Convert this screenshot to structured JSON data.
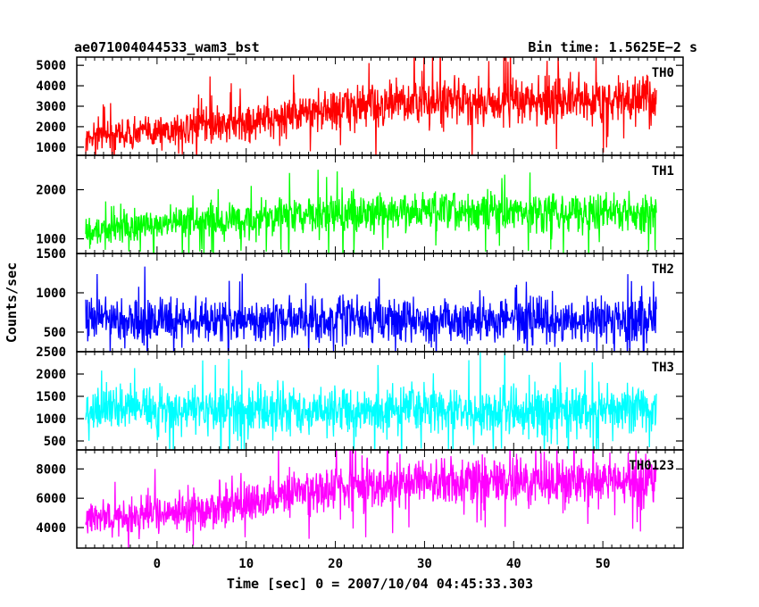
{
  "header": {
    "title": "ae071004044533_wam3_bst",
    "bin_time": "Bin time: 1.5625E−2 s"
  },
  "chart_data": {
    "type": "line",
    "xlabel": "Time [sec] 0 = 2007/10/04 04:45:33.303",
    "ylabel": "Counts/sec",
    "xlim": [
      -9,
      59
    ],
    "x_ticks": [
      0,
      10,
      20,
      30,
      40,
      50
    ],
    "x_range_data": [
      -8,
      56
    ],
    "panels": [
      {
        "name": "TH0",
        "color": "#ff0000",
        "ylim": [
          600,
          5400
        ],
        "ticks": [
          1000,
          2000,
          3000,
          4000,
          5000
        ],
        "trend_x": [
          -8,
          0,
          10,
          20,
          30,
          40,
          56
        ],
        "mean": [
          1500,
          1800,
          2200,
          2900,
          3200,
          3250,
          3300
        ],
        "spread": [
          700,
          800,
          900,
          1100,
          1200,
          1200,
          1100
        ]
      },
      {
        "name": "TH1",
        "color": "#00ff00",
        "ylim": [
          700,
          2700
        ],
        "ticks": [
          1000,
          2000
        ],
        "trend_x": [
          -8,
          0,
          10,
          20,
          30,
          40,
          56
        ],
        "mean": [
          1150,
          1300,
          1400,
          1500,
          1550,
          1550,
          1550
        ],
        "spread": [
          300,
          330,
          380,
          400,
          420,
          420,
          400
        ]
      },
      {
        "name": "TH2",
        "color": "#0000ff",
        "ylim": [
          250,
          1500
        ],
        "ticks": [
          500,
          1000,
          1500
        ],
        "trend_x": [
          -8,
          0,
          10,
          20,
          30,
          40,
          56
        ],
        "mean": [
          650,
          650,
          650,
          650,
          650,
          650,
          650
        ],
        "spread": [
          280,
          280,
          280,
          280,
          280,
          280,
          280
        ]
      },
      {
        "name": "TH3",
        "color": "#00ffff",
        "ylim": [
          300,
          2500
        ],
        "ticks": [
          500,
          1000,
          1500,
          2000,
          2500
        ],
        "trend_x": [
          -8,
          0,
          10,
          20,
          30,
          40,
          56
        ],
        "mean": [
          1200,
          1200,
          1200,
          1200,
          1200,
          1200,
          1200
        ],
        "spread": [
          550,
          550,
          550,
          550,
          550,
          550,
          550
        ]
      },
      {
        "name": "TH0123",
        "color": "#ff00ff",
        "ylim": [
          2600,
          9300
        ],
        "ticks": [
          4000,
          6000,
          8000
        ],
        "trend_x": [
          -8,
          0,
          10,
          20,
          30,
          40,
          56
        ],
        "mean": [
          4500,
          5000,
          5700,
          6700,
          7100,
          7200,
          7200
        ],
        "spread": [
          1200,
          1300,
          1500,
          1600,
          1700,
          1700,
          1600
        ]
      }
    ]
  }
}
